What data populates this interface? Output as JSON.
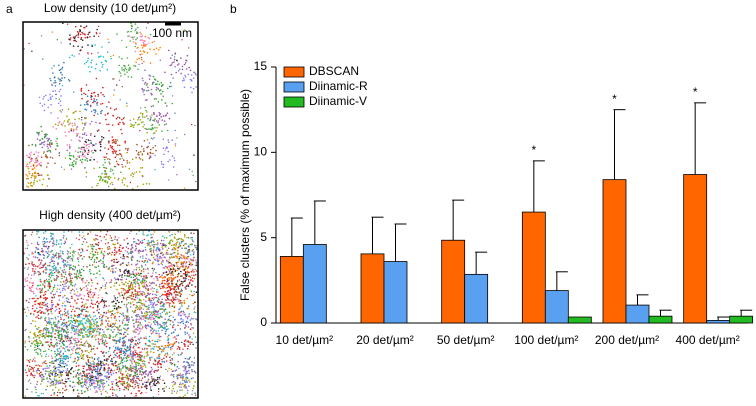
{
  "panel_a": {
    "label": "a",
    "scale_bar": "100 nm",
    "images": [
      {
        "title": "Low density (10 det/µm²)"
      },
      {
        "title": "High density (400 det/µm²)"
      }
    ]
  },
  "panel_b": {
    "label": "b"
  },
  "chart_data": {
    "type": "bar",
    "ylabel": "False clusters (% of maximum possible)",
    "categories": [
      "10 det/µm²",
      "20 det/µm²",
      "50 det/µm²",
      "100 det/µm²",
      "200 det/µm²",
      "400 det/µm²"
    ],
    "series": [
      {
        "name": "DBSCAN",
        "color": "#ff6600",
        "values": [
          3.9,
          4.05,
          4.85,
          6.5,
          8.4,
          8.7
        ],
        "errors": [
          2.25,
          2.15,
          2.35,
          3.0,
          4.1,
          4.2
        ],
        "markers": [
          null,
          null,
          null,
          "*",
          "*",
          "*"
        ]
      },
      {
        "name": "Diinamic-R",
        "color": "#5aa0f0",
        "values": [
          4.6,
          3.6,
          2.85,
          1.9,
          1.05,
          0.15
        ],
        "errors": [
          2.55,
          2.2,
          1.3,
          1.1,
          0.6,
          0.2
        ]
      },
      {
        "name": "Diinamic-V",
        "color": "#22bb22",
        "values": [
          null,
          null,
          null,
          0.35,
          0.4,
          0.4
        ],
        "errors": [
          null,
          null,
          null,
          null,
          0.35,
          0.35
        ]
      }
    ],
    "ylim": [
      0,
      15
    ],
    "yticks": [
      0,
      5,
      10,
      15
    ],
    "legend": "top-left",
    "grid": false
  }
}
